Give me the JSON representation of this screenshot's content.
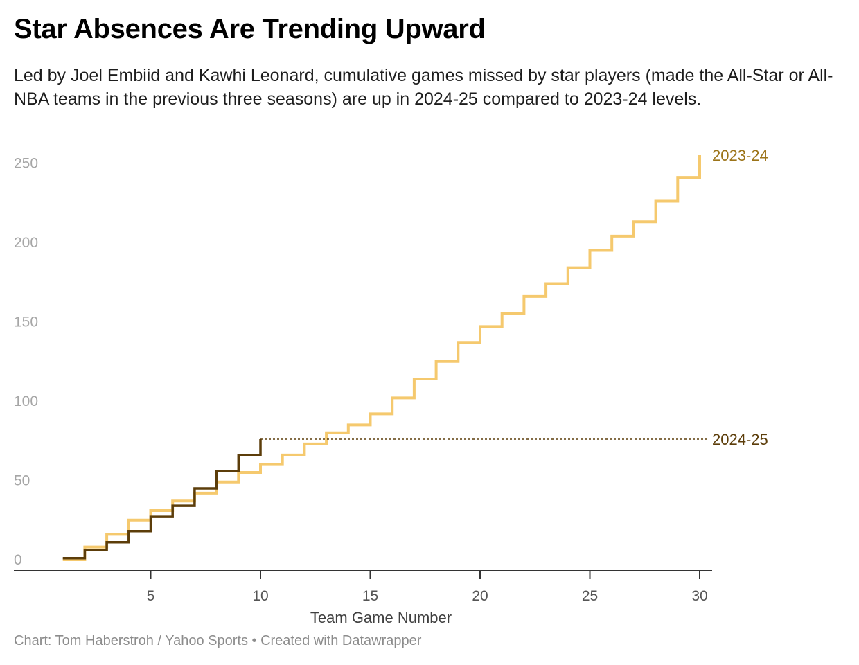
{
  "title": "Star Absences Are Trending Upward",
  "subtitle": "Led by Joel Embiid and Kawhi Leonard, cumulative games missed by star players (made the All-Star or All-NBA teams in the previous three seasons) are up in 2024-25 compared to 2023-24 levels.",
  "footer": "Chart: Tom Haberstroh / Yahoo Sports • Created with Datawrapper",
  "chart_data": {
    "type": "line",
    "step": "after",
    "xlabel": "Team Game Number",
    "ylabel": "",
    "xlim": [
      0,
      30
    ],
    "ylim": [
      0,
      260
    ],
    "x_ticks": [
      5,
      10,
      15,
      20,
      25,
      30
    ],
    "y_ticks": [
      0,
      50,
      100,
      150,
      200,
      250
    ],
    "grid": false,
    "series": [
      {
        "name": "2023-24",
        "color": "#f5c96e",
        "x": [
          1,
          2,
          3,
          4,
          5,
          6,
          7,
          8,
          9,
          10,
          11,
          12,
          13,
          14,
          15,
          16,
          17,
          18,
          19,
          20,
          21,
          22,
          23,
          24,
          25,
          26,
          27,
          28,
          29,
          30
        ],
        "values": [
          0,
          8,
          16,
          25,
          31,
          37,
          42,
          49,
          55,
          60,
          66,
          73,
          80,
          85,
          92,
          102,
          114,
          125,
          137,
          147,
          155,
          166,
          174,
          184,
          195,
          204,
          213,
          226,
          241,
          255
        ]
      },
      {
        "name": "2024-25",
        "color": "#5c3d0a",
        "x": [
          1,
          2,
          3,
          4,
          5,
          6,
          7,
          8,
          9,
          10
        ],
        "values": [
          1,
          6,
          11,
          18,
          27,
          34,
          45,
          56,
          66,
          76
        ],
        "reference_line": {
          "value": 76,
          "to_x": 30,
          "style": "dotted"
        }
      }
    ]
  }
}
